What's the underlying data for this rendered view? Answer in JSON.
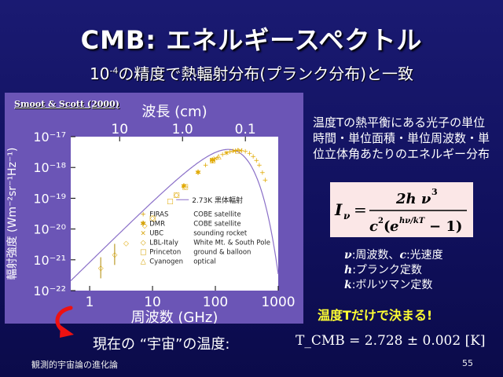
{
  "title": "CMB: エネルギースペクトル",
  "subtitle_pre": "10",
  "subtitle_exp": "-4",
  "subtitle_post": "の精度で熱輻射分布(プランク分布)と一致",
  "citation": "Smoot & Scott (2000)",
  "description": "温度Tの熱平衡にある光子の単位時間・単位面積・単位周波数・単位立体角あたりのエネルギー分布",
  "variables": [
    {
      "sym": "ν",
      "text": ":周波数、"
    },
    {
      "sym": "c",
      "text": ":光速度"
    },
    {
      "sym": "h",
      "text": ":プランク定数"
    },
    {
      "sym": "k",
      "text": ":ボルツマン定数"
    }
  ],
  "emphasis": "温度Tだけで決まる!",
  "temperature_label": "現在の “宇宙”の温度:",
  "temperature_formula": "T_CMB = 2.728 ± 0.002 [K]",
  "footer_left": "観測的宇宙論の進化論",
  "page_number": "55",
  "chart_data": {
    "type": "scatter",
    "title": "",
    "xlabel": "周波数 (GHz)",
    "x2label": "波長 (cm)",
    "ylabel": "輻射強度 (Wm⁻²sr⁻¹Hz⁻¹)",
    "xscale": "log",
    "yscale": "log",
    "xlim": [
      0.5,
      1000
    ],
    "ylim": [
      1e-22,
      1e-17
    ],
    "x_ticks": [
      "1",
      "10",
      "100",
      "1000"
    ],
    "x2_ticks": [
      "10",
      "1.0",
      "0.1"
    ],
    "y_ticks": [
      "10⁻²²",
      "10⁻²¹",
      "10⁻²⁰",
      "10⁻¹⁹",
      "10⁻¹⁸",
      "10⁻¹⁷"
    ],
    "curve_label": "2.73K 黒体輻射",
    "curve_temperature_K": 2.73,
    "legend": [
      {
        "marker": "+",
        "name": "FIRAS",
        "note": "COBE satellite"
      },
      {
        "marker": "✱",
        "name": "DMR",
        "note": "COBE satellite"
      },
      {
        "marker": "×",
        "name": "UBC",
        "note": "sounding rocket"
      },
      {
        "marker": "◇",
        "name": "LBL-Italy",
        "note": "White Mt. & South Pole"
      },
      {
        "marker": "□",
        "name": "Princeton",
        "note": "ground & balloon"
      },
      {
        "marker": "△",
        "name": "Cyanogen",
        "note": "optical"
      }
    ],
    "series": [
      {
        "name": "FIRAS",
        "x": [
          70,
          90,
          110,
          130,
          150,
          170,
          190,
          210,
          230,
          260,
          300,
          350,
          400,
          450,
          500,
          560,
          620
        ],
        "y": [
          1.2e-18,
          1.7e-18,
          2.2e-18,
          2.7e-18,
          3e-18,
          3.3e-18,
          3.5e-18,
          3.6e-18,
          3.7e-18,
          3.6e-18,
          3.4e-18,
          2.9e-18,
          2.3e-18,
          1.7e-18,
          1.2e-18,
          7e-19,
          4e-19
        ]
      },
      {
        "name": "DMR",
        "x": [
          31.5,
          53,
          90
        ],
        "y": [
          2.5e-19,
          7e-19,
          1.7e-18
        ]
      },
      {
        "name": "UBC",
        "x": [
          100,
          150,
          200,
          250
        ],
        "y": [
          2e-18,
          3e-18,
          3.5e-18,
          3.6e-18
        ]
      },
      {
        "name": "LBL-Italy",
        "x": [
          1.5,
          2.5,
          3.8,
          7.5,
          10,
          24,
          33,
          90
        ],
        "y": [
          5.5e-22,
          1.5e-21,
          3.5e-21,
          1.3e-20,
          2.3e-20,
          1.3e-19,
          2.4e-19,
          1.7e-18
        ]
      },
      {
        "name": "Princeton",
        "x": [
          10,
          19,
          24,
          33,
          90
        ],
        "y": [
          2.3e-20,
          8e-20,
          1.3e-19,
          2.4e-19,
          1.7e-18
        ]
      },
      {
        "name": "Cyanogen",
        "x": [
          113,
          227
        ],
        "y": [
          2.3e-18,
          3.6e-18
        ]
      }
    ]
  }
}
